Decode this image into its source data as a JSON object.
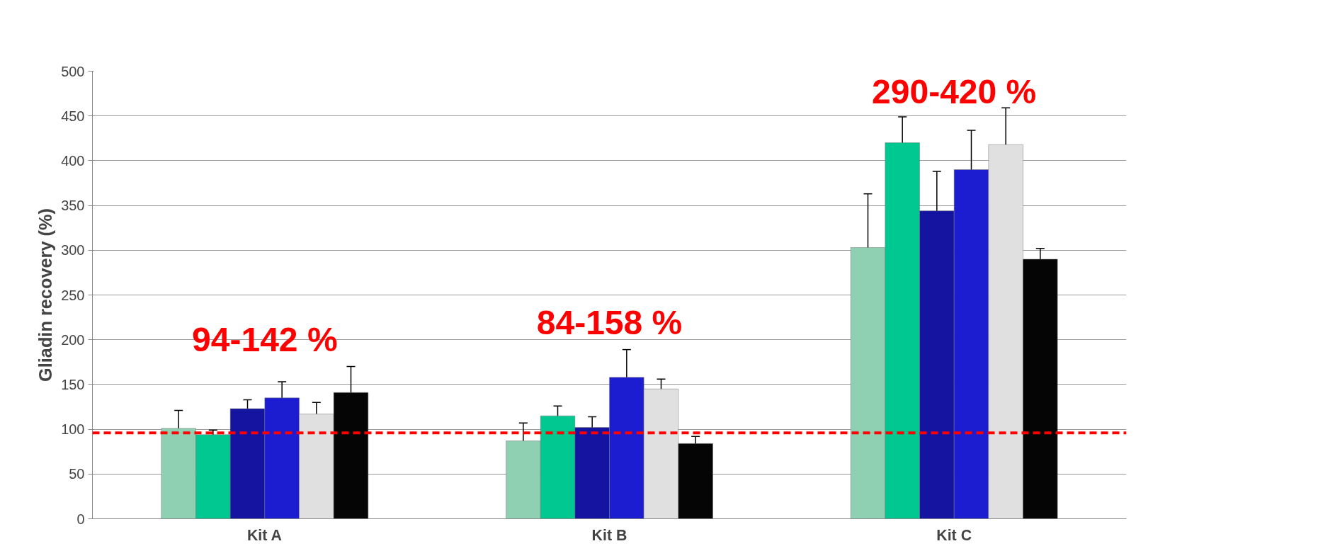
{
  "chart_data": {
    "type": "bar",
    "ylabel": "Gliadin recovery (%)",
    "categories": [
      "Kit A",
      "Kit B",
      "Kit C"
    ],
    "series": [
      {
        "color": "#8fcfb2",
        "values": [
          101,
          87,
          303
        ],
        "errors": [
          20,
          20,
          60
        ]
      },
      {
        "color": "#00c890",
        "values": [
          94,
          115,
          420
        ],
        "errors": [
          5,
          11,
          29
        ]
      },
      {
        "color": "#1414a0",
        "values": [
          123,
          102,
          344
        ],
        "errors": [
          10,
          12,
          44
        ]
      },
      {
        "color": "#1c1cd0",
        "values": [
          135,
          158,
          390
        ],
        "errors": [
          18,
          31,
          44
        ]
      },
      {
        "color": "#e0e0e0",
        "values": [
          117,
          145,
          418
        ],
        "errors": [
          13,
          11,
          41
        ]
      },
      {
        "color": "#050505",
        "values": [
          141,
          84,
          290
        ],
        "errors": [
          29,
          8,
          12
        ]
      }
    ],
    "ylim": [
      0,
      500
    ],
    "yticks": [
      0,
      50,
      100,
      150,
      200,
      250,
      300,
      350,
      400,
      450,
      500
    ],
    "grid": "y",
    "ref_lines": [
      {
        "axis": "y",
        "value": 96,
        "color": "#ff0000",
        "line_style": "dashed"
      }
    ],
    "annotations": [
      "94-142 %",
      "84-158 %",
      "290-420 %"
    ]
  }
}
